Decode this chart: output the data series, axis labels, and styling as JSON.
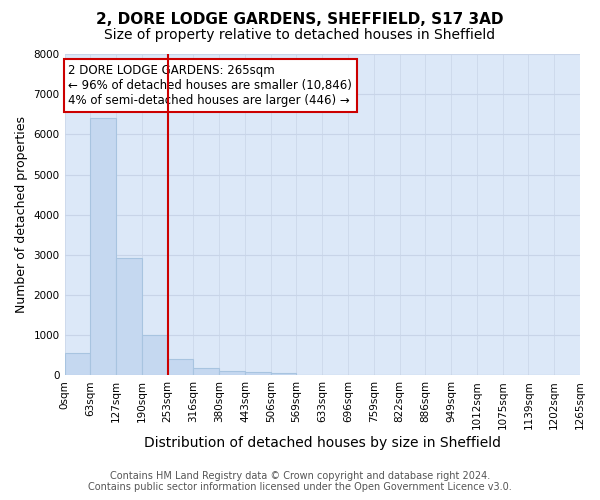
{
  "title": "2, DORE LODGE GARDENS, SHEFFIELD, S17 3AD",
  "subtitle": "Size of property relative to detached houses in Sheffield",
  "xlabel": "Distribution of detached houses by size in Sheffield",
  "ylabel": "Number of detached properties",
  "footer_line1": "Contains HM Land Registry data © Crown copyright and database right 2024.",
  "footer_line2": "Contains public sector information licensed under the Open Government Licence v3.0.",
  "annotation_line1": "2 DORE LODGE GARDENS: 265sqm",
  "annotation_line2": "← 96% of detached houses are smaller (10,846)",
  "annotation_line3": "4% of semi-detached houses are larger (446) →",
  "bar_values": [
    550,
    6400,
    2920,
    1000,
    400,
    175,
    100,
    75,
    50,
    0,
    0,
    0,
    0,
    0,
    0,
    0,
    0,
    0,
    0,
    0
  ],
  "x_labels": [
    "0sqm",
    "63sqm",
    "127sqm",
    "190sqm",
    "253sqm",
    "316sqm",
    "380sqm",
    "443sqm",
    "506sqm",
    "569sqm",
    "633sqm",
    "696sqm",
    "759sqm",
    "822sqm",
    "886sqm",
    "949sqm",
    "1012sqm",
    "1075sqm",
    "1139sqm",
    "1202sqm",
    "1265sqm"
  ],
  "n_bins": 20,
  "bar_color": "#c5d8f0",
  "bar_edge_color": "#a8c4e0",
  "vline_bin": 4,
  "vline_color": "#cc0000",
  "annotation_box_color": "#cc0000",
  "ylim": [
    0,
    8000
  ],
  "yticks": [
    0,
    1000,
    2000,
    3000,
    4000,
    5000,
    6000,
    7000,
    8000
  ],
  "grid_color": "#c8d4e8",
  "plot_bg_color": "#dce8f8",
  "title_fontsize": 11,
  "subtitle_fontsize": 10,
  "xlabel_fontsize": 10,
  "ylabel_fontsize": 9,
  "tick_fontsize": 7.5,
  "footer_fontsize": 7,
  "annotation_fontsize": 8.5
}
